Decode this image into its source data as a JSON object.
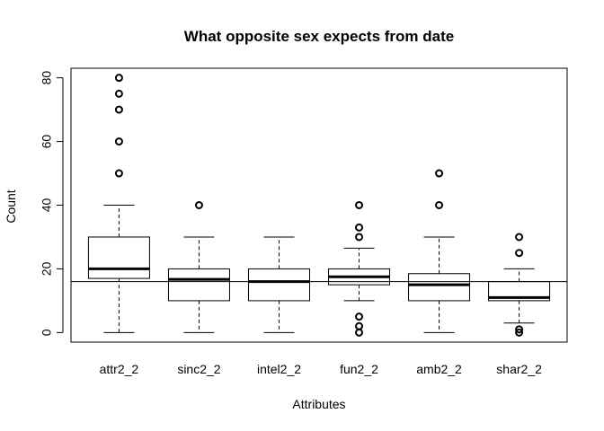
{
  "chart_data": {
    "type": "boxplot",
    "title": "What opposite sex expects from date",
    "xlabel": "Attributes",
    "ylabel": "Count",
    "ylim": [
      -3,
      83
    ],
    "yticks": [
      0,
      20,
      40,
      60,
      80
    ],
    "reference_line": 16,
    "grid": false,
    "legend": "none",
    "categories": [
      "attr2_2",
      "sinc2_2",
      "intel2_2",
      "fun2_2",
      "amb2_2",
      "shar2_2"
    ],
    "boxes": [
      {
        "label": "attr2_2",
        "whisker_low": 0,
        "q1": 17,
        "median": 20,
        "q3": 30,
        "whisker_high": 40,
        "outliers": [
          50,
          60,
          70,
          75,
          80
        ]
      },
      {
        "label": "sinc2_2",
        "whisker_low": 0,
        "q1": 10,
        "median": 16.7,
        "q3": 20,
        "whisker_high": 30,
        "outliers": [
          40
        ]
      },
      {
        "label": "intel2_2",
        "whisker_low": 0,
        "q1": 10,
        "median": 16,
        "q3": 20,
        "whisker_high": 30,
        "outliers": []
      },
      {
        "label": "fun2_2",
        "whisker_low": 10,
        "q1": 15,
        "median": 17.5,
        "q3": 20,
        "whisker_high": 26.5,
        "outliers": [
          0,
          2,
          5,
          30,
          33,
          40
        ]
      },
      {
        "label": "amb2_2",
        "whisker_low": 0,
        "q1": 10,
        "median": 15,
        "q3": 18.5,
        "whisker_high": 30,
        "outliers": [
          40,
          50
        ]
      },
      {
        "label": "shar2_2",
        "whisker_low": 3,
        "q1": 10,
        "median": 11,
        "q3": 16,
        "whisker_high": 20,
        "outliers": [
          0,
          1,
          25,
          30
        ]
      }
    ]
  }
}
